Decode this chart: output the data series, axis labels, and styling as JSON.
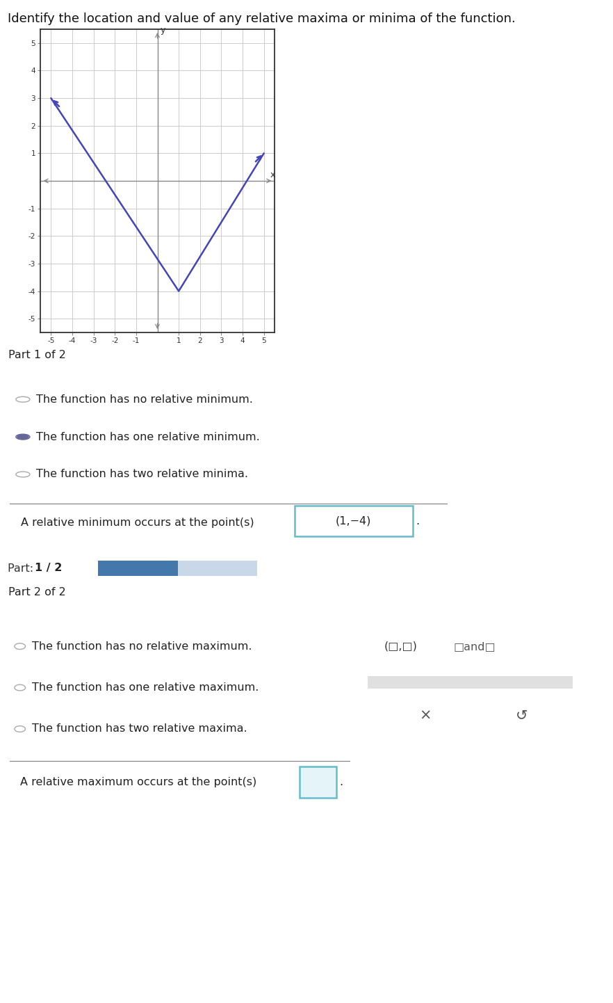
{
  "title": "Identify the location and value of any relative maxima or minima of the function.",
  "graph": {
    "xlim": [
      -5.5,
      5.5
    ],
    "ylim": [
      -5.5,
      5.5
    ],
    "xticks": [
      -5,
      -4,
      -3,
      -2,
      -1,
      1,
      2,
      3,
      4,
      5
    ],
    "yticks": [
      -5,
      -4,
      -3,
      -2,
      -1,
      1,
      2,
      3,
      4,
      5
    ],
    "line_points_x": [
      -5,
      1,
      5
    ],
    "line_points_y": [
      3,
      -4,
      1
    ],
    "line_color": "#4444bb",
    "line_width": 1.8,
    "grid_color": "#cccccc",
    "bg_color": "#ffffff",
    "axis_color": "#888888"
  },
  "part1_header_text": "Part 1 of 2",
  "part1_options": [
    {
      "text": "The function has no relative minimum.",
      "selected": false
    },
    {
      "text": "The function has one relative minimum.",
      "selected": true
    },
    {
      "text": "The function has two relative minima.",
      "selected": false
    }
  ],
  "part1_answer_text": "A relative minimum occurs at the point(s)",
  "part1_answer_value": "(1,−4)",
  "part1_answer_box_color": "#66bbcc",
  "progress_bar_filled_color": "#4477aa",
  "progress_bar_empty_color": "#c8d8e8",
  "progress_bar_bg": "#dce8f0",
  "part2_header_text": "Part 2 of 2",
  "part2_options": [
    {
      "text": "The function has no relative maximum.",
      "selected": false
    },
    {
      "text": "The function has one relative maximum.",
      "selected": false
    },
    {
      "text": "The function has two relative maxima.",
      "selected": false
    }
  ],
  "part2_answer_text": "A relative maximum occurs at the point(s)",
  "part2_answer_box_color": "#66bbcc",
  "header_bg": "#cdd5dc",
  "font_size_title": 13,
  "font_size_body": 11.5,
  "radio_color_selected": "#666699",
  "radio_color_unselected": "#aaaaaa"
}
